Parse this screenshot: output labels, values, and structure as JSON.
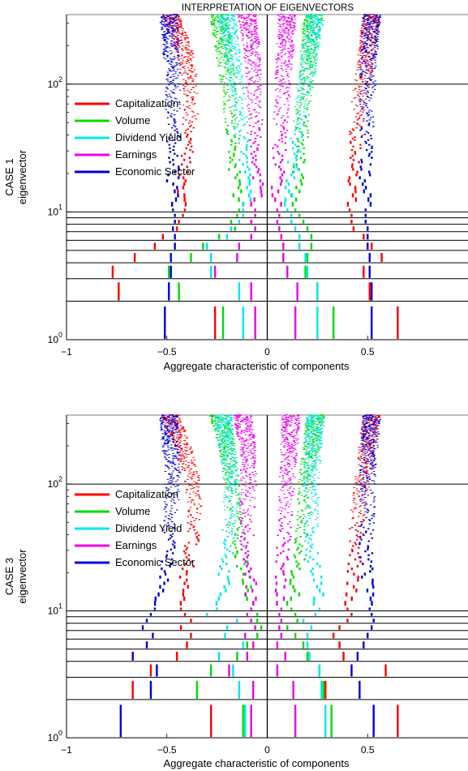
{
  "title": "INTERPRETATION OF EIGENVECTORS",
  "chart_data": [
    {
      "type": "scatter",
      "case_label": "CASE 1",
      "ylabel": "eigenvector",
      "xlabel": "Aggregate characteristic of components",
      "xlim": [
        -1,
        1
      ],
      "ylim": [
        1,
        350
      ],
      "yscale": "log",
      "x_ticks": [
        "−1",
        "−0.5",
        "0",
        "0.5"
      ],
      "x_tick_values": [
        -1,
        -0.5,
        0,
        0.5
      ],
      "y_ticks": [
        {
          "base": "10",
          "exp": "0"
        },
        {
          "base": "10",
          "exp": "1"
        },
        {
          "base": "10",
          "exp": "2"
        }
      ],
      "y_tick_values": [
        1,
        10,
        100
      ],
      "hlines": [
        2,
        3,
        4,
        5,
        6,
        7,
        8,
        9,
        10,
        100
      ],
      "legend": [
        "Capitalization",
        "Volume",
        "Dividend Yield",
        "Earnings",
        "Economic Sector"
      ],
      "legend_position": "left",
      "series": [
        {
          "name": "Capitalization",
          "color": "#ff0000",
          "pairs": [
            [
              1,
              -0.26,
              0.65
            ],
            [
              2,
              -0.74,
              0.51
            ],
            [
              3,
              -0.77,
              0.48
            ],
            [
              4,
              -0.66,
              0.57
            ],
            [
              5,
              -0.56,
              0.52
            ],
            [
              6,
              -0.52,
              0.48
            ],
            [
              7,
              -0.45,
              0.43
            ],
            [
              8,
              -0.44,
              0.42
            ],
            [
              9,
              -0.42,
              0.42
            ],
            [
              10,
              -0.41,
              0.41
            ]
          ],
          "upper": [
            [
              15,
              -0.43,
              0.42
            ],
            [
              30,
              -0.4,
              0.44
            ],
            [
              60,
              -0.38,
              0.45
            ],
            [
              120,
              -0.39,
              0.48
            ],
            [
              200,
              -0.42,
              0.5
            ],
            [
              330,
              -0.48,
              0.52
            ]
          ]
        },
        {
          "name": "Volume",
          "color": "#00dd00",
          "pairs": [
            [
              1,
              -0.22,
              0.33
            ],
            [
              2,
              -0.44,
              0.25
            ],
            [
              3,
              -0.49,
              0.19
            ],
            [
              4,
              -0.38,
              0.2
            ],
            [
              5,
              -0.32,
              0.22
            ],
            [
              6,
              -0.24,
              0.22
            ],
            [
              7,
              -0.16,
              0.2
            ],
            [
              8,
              -0.18,
              0.18
            ],
            [
              9,
              -0.15,
              0.16
            ],
            [
              10,
              -0.14,
              0.14
            ]
          ],
          "upper": [
            [
              15,
              -0.16,
              0.15
            ],
            [
              30,
              -0.16,
              0.17
            ],
            [
              60,
              -0.18,
              0.18
            ],
            [
              120,
              -0.2,
              0.2
            ],
            [
              200,
              -0.22,
              0.21
            ],
            [
              330,
              -0.24,
              0.23
            ]
          ]
        },
        {
          "name": "Dividend Yield",
          "color": "#00e8ee",
          "pairs": [
            [
              1,
              -0.12,
              0.25
            ],
            [
              2,
              -0.14,
              0.25
            ],
            [
              3,
              -0.28,
              0.2
            ],
            [
              4,
              -0.28,
              0.19
            ],
            [
              5,
              -0.3,
              0.16
            ],
            [
              6,
              -0.2,
              0.16
            ],
            [
              7,
              -0.18,
              0.14
            ],
            [
              8,
              -0.14,
              0.12
            ],
            [
              9,
              -0.12,
              0.12
            ],
            [
              10,
              -0.12,
              0.1
            ]
          ],
          "upper": [
            [
              15,
              -0.1,
              0.12
            ],
            [
              30,
              -0.12,
              0.14
            ],
            [
              60,
              -0.14,
              0.17
            ],
            [
              120,
              -0.16,
              0.2
            ],
            [
              200,
              -0.18,
              0.22
            ],
            [
              330,
              -0.2,
              0.24
            ]
          ]
        },
        {
          "name": "Earnings",
          "color": "#ee00ee",
          "pairs": [
            [
              1,
              -0.06,
              0.14
            ],
            [
              2,
              -0.08,
              0.15
            ],
            [
              3,
              -0.26,
              0.1
            ],
            [
              4,
              -0.15,
              0.08
            ],
            [
              5,
              -0.14,
              0.08
            ],
            [
              6,
              -0.08,
              0.07
            ],
            [
              7,
              -0.06,
              0.06
            ],
            [
              8,
              -0.08,
              0.05
            ],
            [
              9,
              -0.06,
              0.06
            ],
            [
              10,
              -0.06,
              0.05
            ]
          ],
          "upper": [
            [
              15,
              -0.05,
              0.05
            ],
            [
              30,
              -0.05,
              0.06
            ],
            [
              60,
              -0.06,
              0.07
            ],
            [
              120,
              -0.07,
              0.08
            ],
            [
              200,
              -0.08,
              0.09
            ],
            [
              330,
              -0.1,
              0.1
            ]
          ]
        },
        {
          "name": "Economic Sector",
          "color": "#0000dd",
          "pairs": [
            [
              1,
              -0.51,
              0.52
            ],
            [
              2,
              -0.49,
              0.52
            ],
            [
              3,
              -0.48,
              0.51
            ],
            [
              4,
              -0.48,
              0.51
            ],
            [
              5,
              -0.46,
              0.5
            ],
            [
              6,
              -0.46,
              0.5
            ],
            [
              7,
              -0.47,
              0.5
            ],
            [
              8,
              -0.46,
              0.49
            ],
            [
              9,
              -0.46,
              0.49
            ],
            [
              10,
              -0.47,
              0.49
            ]
          ],
          "upper": [
            [
              15,
              -0.47,
              0.49
            ],
            [
              30,
              -0.47,
              0.49
            ],
            [
              60,
              -0.47,
              0.5
            ],
            [
              120,
              -0.47,
              0.5
            ],
            [
              200,
              -0.48,
              0.51
            ],
            [
              330,
              -0.49,
              0.52
            ]
          ]
        }
      ]
    },
    {
      "type": "scatter",
      "case_label": "CASE 3",
      "ylabel": "eigenvector",
      "xlabel": "Aggregate characteristic of components",
      "xlim": [
        -1,
        1
      ],
      "ylim": [
        1,
        350
      ],
      "yscale": "log",
      "x_ticks": [
        "−1",
        "−0.5",
        "0",
        "0.5"
      ],
      "x_tick_values": [
        -1,
        -0.5,
        0,
        0.5
      ],
      "y_ticks": [
        {
          "base": "10",
          "exp": "0"
        },
        {
          "base": "10",
          "exp": "1"
        },
        {
          "base": "10",
          "exp": "2"
        }
      ],
      "y_tick_values": [
        1,
        10,
        100
      ],
      "hlines": [
        2,
        3,
        4,
        5,
        6,
        7,
        8,
        9,
        10,
        100
      ],
      "legend": [
        "Capitalization",
        "Volume",
        "Dividend Yield",
        "Earnings",
        "Economic Sector"
      ],
      "legend_position": "left",
      "series": [
        {
          "name": "Capitalization",
          "color": "#ff0000",
          "pairs": [
            [
              1,
              -0.28,
              0.65
            ],
            [
              2,
              -0.67,
              0.29
            ],
            [
              3,
              -0.58,
              0.59
            ],
            [
              4,
              -0.45,
              0.38
            ],
            [
              5,
              -0.4,
              0.36
            ],
            [
              6,
              -0.38,
              0.33
            ],
            [
              7,
              -0.43,
              0.36
            ],
            [
              8,
              -0.38,
              0.4
            ],
            [
              9,
              -0.41,
              0.42
            ],
            [
              10,
              -0.43,
              0.4
            ]
          ],
          "upper": [
            [
              15,
              -0.42,
              0.42
            ],
            [
              30,
              -0.38,
              0.44
            ],
            [
              60,
              -0.36,
              0.45
            ],
            [
              120,
              -0.38,
              0.48
            ],
            [
              200,
              -0.42,
              0.5
            ],
            [
              330,
              -0.48,
              0.52
            ]
          ]
        },
        {
          "name": "Volume",
          "color": "#00dd00",
          "pairs": [
            [
              1,
              -0.12,
              0.32
            ],
            [
              2,
              -0.35,
              0.28
            ],
            [
              3,
              -0.28,
              0.26
            ],
            [
              4,
              -0.15,
              0.2
            ],
            [
              5,
              -0.1,
              0.18
            ],
            [
              6,
              -0.05,
              0.14
            ],
            [
              7,
              -0.03,
              0.1
            ],
            [
              8,
              -0.05,
              0.15
            ],
            [
              9,
              -0.05,
              0.14
            ],
            [
              10,
              -0.08,
              0.12
            ]
          ],
          "upper": [
            [
              15,
              -0.1,
              0.14
            ],
            [
              30,
              -0.14,
              0.16
            ],
            [
              60,
              -0.16,
              0.18
            ],
            [
              120,
              -0.18,
              0.2
            ],
            [
              200,
              -0.2,
              0.22
            ],
            [
              330,
              -0.24,
              0.24
            ]
          ]
        },
        {
          "name": "Dividend Yield",
          "color": "#00e8ee",
          "pairs": [
            [
              1,
              -0.11,
              0.29
            ],
            [
              2,
              -0.14,
              0.27
            ],
            [
              3,
              -0.17,
              0.26
            ],
            [
              4,
              -0.24,
              0.21
            ],
            [
              5,
              -0.12,
              0.2
            ],
            [
              6,
              -0.21,
              0.2
            ],
            [
              7,
              -0.2,
              0.22
            ],
            [
              8,
              -0.15,
              0.18
            ],
            [
              9,
              -0.3,
              0.24
            ],
            [
              10,
              -0.25,
              0.26
            ]
          ],
          "upper": [
            [
              15,
              -0.22,
              0.25
            ],
            [
              30,
              -0.2,
              0.22
            ],
            [
              60,
              -0.18,
              0.22
            ],
            [
              120,
              -0.18,
              0.22
            ],
            [
              200,
              -0.2,
              0.23
            ],
            [
              330,
              -0.22,
              0.24
            ]
          ]
        },
        {
          "name": "Earnings",
          "color": "#ee00ee",
          "pairs": [
            [
              1,
              -0.08,
              0.14
            ],
            [
              2,
              -0.07,
              0.13
            ],
            [
              3,
              -0.19,
              0.05
            ],
            [
              4,
              -0.1,
              0.09
            ],
            [
              5,
              -0.07,
              0.05
            ],
            [
              6,
              -0.11,
              0.07
            ],
            [
              7,
              -0.06,
              0.06
            ],
            [
              8,
              -0.08,
              0.07
            ],
            [
              9,
              -0.1,
              0.06
            ],
            [
              10,
              -0.08,
              0.07
            ]
          ],
          "upper": [
            [
              15,
              -0.08,
              0.06
            ],
            [
              30,
              -0.1,
              0.08
            ],
            [
              60,
              -0.1,
              0.09
            ],
            [
              120,
              -0.09,
              0.1
            ],
            [
              200,
              -0.1,
              0.11
            ],
            [
              330,
              -0.12,
              0.12
            ]
          ]
        },
        {
          "name": "Economic Sector",
          "color": "#0000dd",
          "pairs": [
            [
              1,
              -0.73,
              0.53
            ],
            [
              2,
              -0.58,
              0.46
            ],
            [
              3,
              -0.55,
              0.42
            ],
            [
              4,
              -0.67,
              0.45
            ],
            [
              5,
              -0.6,
              0.48
            ],
            [
              6,
              -0.57,
              0.5
            ],
            [
              7,
              -0.62,
              0.52
            ],
            [
              8,
              -0.6,
              0.53
            ],
            [
              9,
              -0.58,
              0.52
            ],
            [
              10,
              -0.56,
              0.51
            ]
          ],
          "upper": [
            [
              15,
              -0.52,
              0.5
            ],
            [
              30,
              -0.49,
              0.49
            ],
            [
              60,
              -0.48,
              0.5
            ],
            [
              120,
              -0.47,
              0.5
            ],
            [
              200,
              -0.48,
              0.51
            ],
            [
              330,
              -0.49,
              0.52
            ]
          ]
        }
      ]
    }
  ]
}
